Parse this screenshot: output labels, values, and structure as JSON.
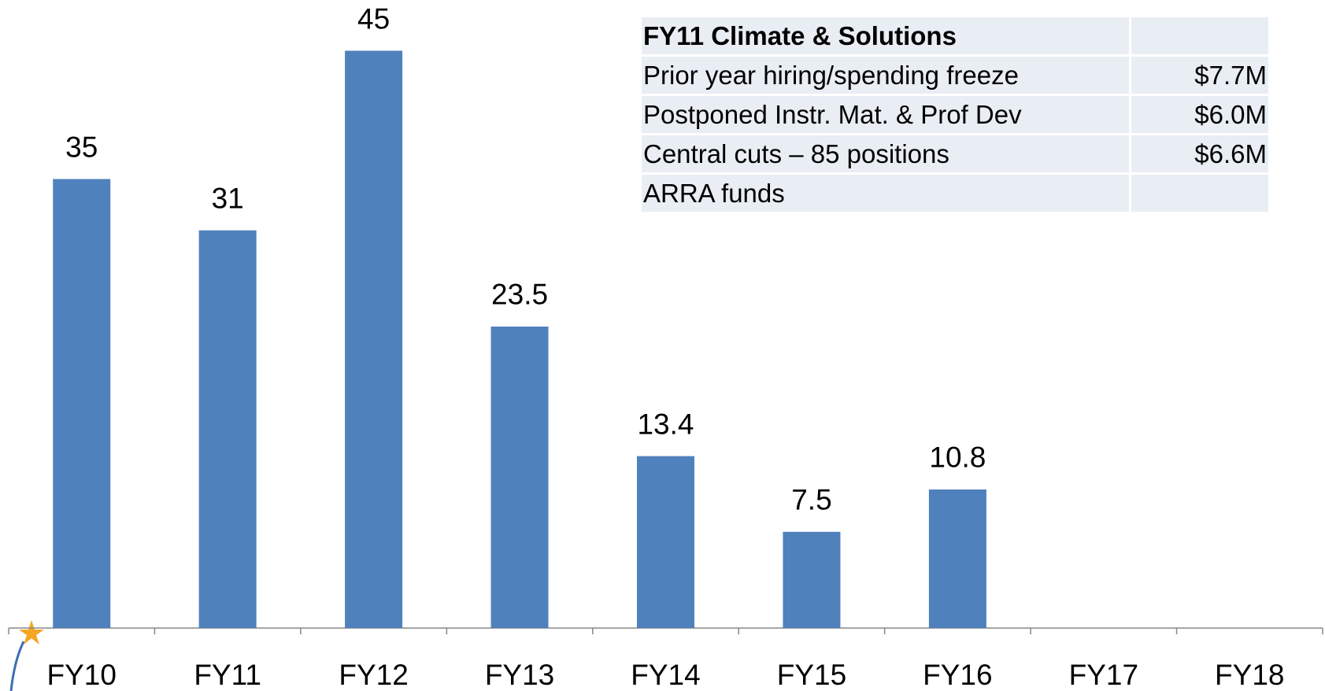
{
  "chart_data": {
    "type": "bar",
    "categories": [
      "FY10",
      "FY11",
      "FY12",
      "FY13",
      "FY14",
      "FY15",
      "FY16",
      "FY17",
      "FY18"
    ],
    "values": [
      35,
      31,
      45,
      23.5,
      13.4,
      7.5,
      10.8,
      null,
      null
    ],
    "color": "#4f81bd"
  },
  "table": {
    "title": "FY11 Climate & Solutions",
    "rows": [
      [
        "Prior year hiring/spending freeze",
        "$7.7M"
      ],
      [
        "Postponed Instr. Mat. & Prof Dev",
        "$6.0M"
      ],
      [
        "Central cuts – 85 positions",
        "$6.6M"
      ],
      [
        "ARRA funds"
      ]
    ]
  }
}
